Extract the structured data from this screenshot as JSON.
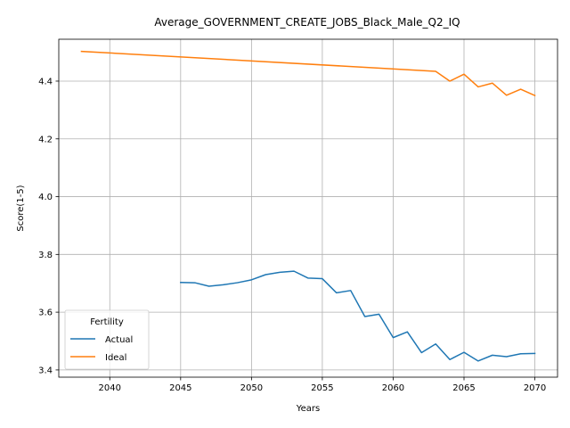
{
  "chart_data": {
    "type": "line",
    "title": "Average_GOVERNMENT_CREATE_JOBS_Black_Male_Q2_IQ",
    "xlabel": "Years",
    "ylabel": "Score(1-5)",
    "xlim": [
      2036.4,
      2071.6
    ],
    "ylim": [
      3.375,
      4.545
    ],
    "xticks": [
      2040,
      2045,
      2050,
      2055,
      2060,
      2065,
      2070
    ],
    "yticks": [
      3.4,
      3.6,
      3.8,
      4.0,
      4.2,
      4.4
    ],
    "grid": true,
    "legend": {
      "title": "Fertility",
      "position": "lower-left"
    },
    "series": [
      {
        "name": "Actual",
        "color": "#1f77b4",
        "x": [
          2045,
          2046,
          2047,
          2048,
          2049,
          2050,
          2051,
          2052,
          2053,
          2054,
          2055,
          2056,
          2057,
          2058,
          2059,
          2060,
          2061,
          2062,
          2063,
          2064,
          2065,
          2066,
          2067,
          2068,
          2069,
          2070
        ],
        "y": [
          3.703,
          3.702,
          3.69,
          3.695,
          3.702,
          3.712,
          3.73,
          3.738,
          3.742,
          3.718,
          3.716,
          3.667,
          3.675,
          3.585,
          3.593,
          3.512,
          3.532,
          3.46,
          3.49,
          3.436,
          3.461,
          3.431,
          3.451,
          3.446,
          3.456,
          3.457
        ]
      },
      {
        "name": "Ideal",
        "color": "#ff7f0e",
        "x": [
          2038,
          2063,
          2064,
          2065,
          2066,
          2067,
          2068,
          2069,
          2070
        ],
        "y": [
          4.503,
          4.434,
          4.4,
          4.424,
          4.38,
          4.393,
          4.351,
          4.372,
          4.35
        ]
      }
    ]
  }
}
